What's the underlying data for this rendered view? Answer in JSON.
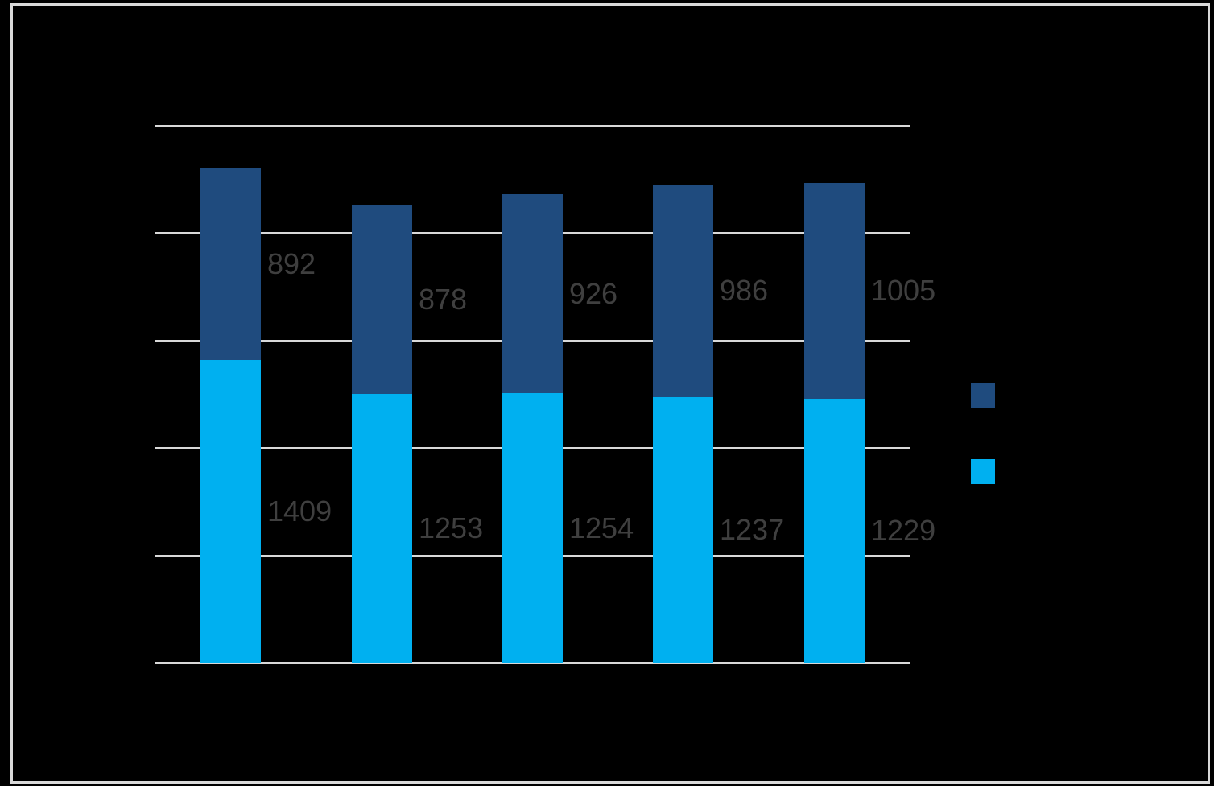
{
  "canvas": {
    "background_color": "#000000",
    "frame_border_color": "#D9D9D9"
  },
  "chart_data": {
    "type": "bar",
    "stacked": true,
    "orientation": "vertical",
    "title": "",
    "xlabel": "",
    "ylabel": "",
    "categories": [
      "",
      "",
      "",
      "",
      ""
    ],
    "series": [
      {
        "id": "bottom-segment",
        "legend_label": "",
        "color": "#00B0F0",
        "values": [
          1409,
          1253,
          1254,
          1237,
          1229
        ]
      },
      {
        "id": "top-segment",
        "legend_label": "",
        "color": "#1F4B7E",
        "values": [
          892,
          878,
          926,
          986,
          1005
        ]
      }
    ],
    "totals": [
      2301,
      2131,
      2180,
      2223,
      2234
    ],
    "ylim": [
      0,
      2500
    ],
    "y_gridline_step": 500,
    "grid": true,
    "gridline_color": "#D9D9D9",
    "axis_tick_labels_visible": false,
    "data_labels": {
      "visible": true,
      "color": "#3F3F3F",
      "position": "right-of-bar-segment-center",
      "bottom_segment_labels": [
        "1409",
        "1253",
        "1254",
        "1237",
        "1229"
      ],
      "top_segment_labels": [
        "892",
        "878",
        "926",
        "986",
        "1005"
      ]
    },
    "legend": {
      "position": "right",
      "entries": [
        {
          "label": "",
          "color": "#1F4B7E"
        },
        {
          "label": "",
          "color": "#00B0F0"
        }
      ]
    }
  }
}
